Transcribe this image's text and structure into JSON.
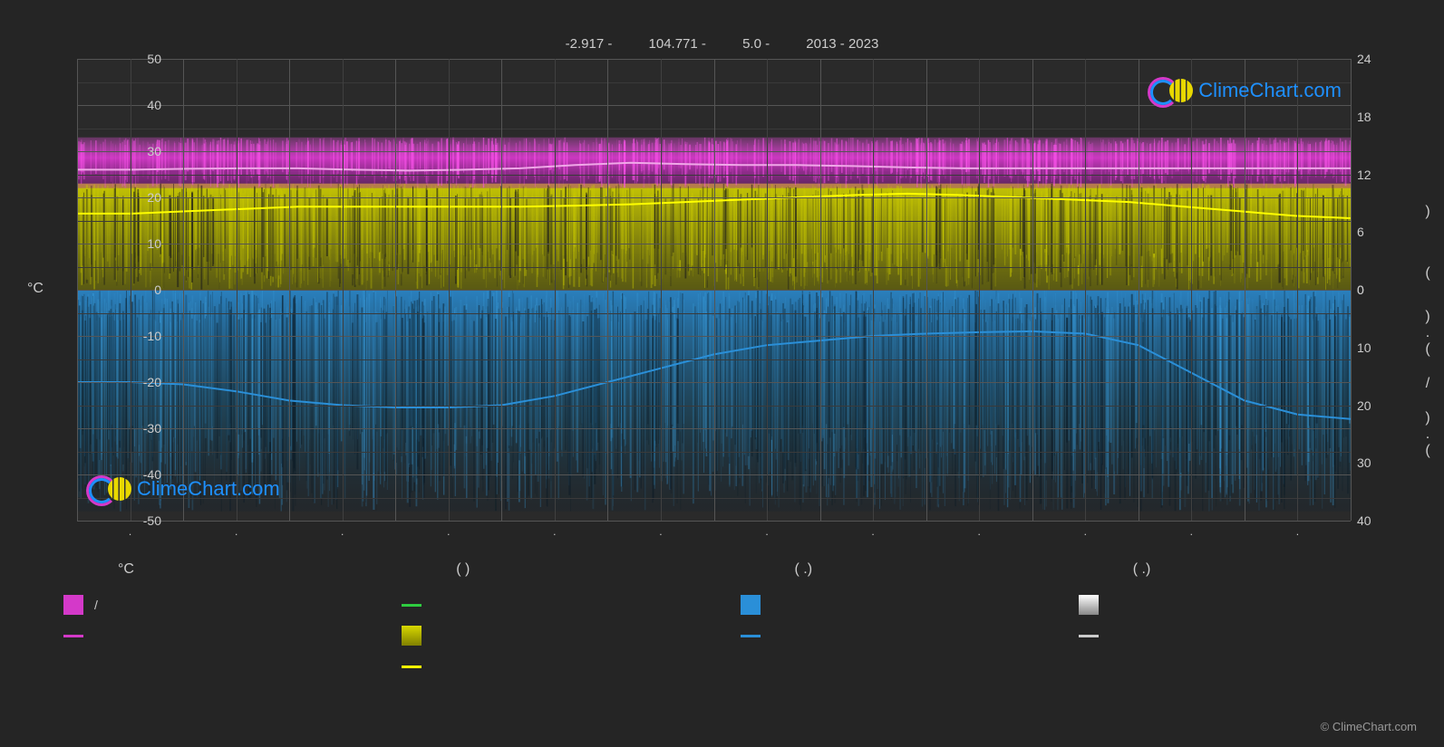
{
  "header": {
    "lat": "-2.917 -",
    "lon": "104.771 -",
    "elev": "5.0 -",
    "years": "2013 - 2023"
  },
  "chart": {
    "type": "climate-chart",
    "background_color": "#2a2a2a",
    "grid_color_major": "#555555",
    "grid_color_minor": "#3a3a3a",
    "left_axis": {
      "title": "°C",
      "min": -50,
      "max": 50,
      "ticks": [
        -50,
        -40,
        -30,
        -20,
        -10,
        0,
        10,
        20,
        30,
        40,
        50
      ]
    },
    "right_axis": {
      "upper": {
        "ticks": [
          0,
          6,
          12,
          18,
          24
        ],
        "range": [
          0,
          24
        ]
      },
      "lower": {
        "ticks": [
          0,
          10,
          20,
          30,
          40
        ],
        "range": [
          0,
          40
        ]
      },
      "labels": [
        ")",
        "(",
        ")",
        ".",
        "(",
        "/",
        ")",
        ".",
        "("
      ]
    },
    "months": [
      "",
      "",
      "",
      "",
      "",
      "",
      "",
      "",
      "",
      "",
      "",
      ""
    ],
    "series": {
      "temp_max_band": {
        "color": "#d439c9",
        "top_c": 33,
        "bottom_c": 22
      },
      "temp_max_line": {
        "color": "#f0a8e8",
        "values_c": [
          26,
          26,
          26.2,
          26.3,
          26.3,
          26,
          25.8,
          26,
          26.3,
          27,
          27.5,
          27.2,
          27,
          27,
          26.8,
          26.5,
          26.3,
          26.3,
          26.3,
          26.3,
          26.3,
          26.3,
          26.3,
          26.3
        ]
      },
      "sun_band": {
        "color": "#d8d800",
        "top_c": 23,
        "bottom_c": 0
      },
      "sun_line": {
        "color": "#ffff00",
        "values_c": [
          16.5,
          16.5,
          17,
          17.5,
          18,
          18,
          18,
          18,
          18,
          18.2,
          18.5,
          19,
          19.5,
          20,
          20.5,
          20.8,
          20.5,
          20,
          19.5,
          19,
          18,
          17,
          16,
          15.5
        ]
      },
      "precip_band": {
        "color_top": "#2a8fd8",
        "color_bottom": "#0a2a40",
        "top_c": 0,
        "bottom_c": -48
      },
      "precip_line": {
        "color": "#2a8fd8",
        "values_c": [
          -20,
          -20,
          -20.5,
          -22,
          -24,
          -25,
          -25.5,
          -25.5,
          -25,
          -23,
          -20,
          -17,
          -14,
          -12,
          -11,
          -10,
          -9.5,
          -9.2,
          -9,
          -9.5,
          -12,
          -18,
          -24,
          -27,
          -28
        ]
      },
      "green_tick": {
        "color": "#2ecc40"
      },
      "grey_band": {
        "color_top": "#ffffff",
        "color_bottom": "#888888"
      }
    }
  },
  "legend": {
    "headers": [
      "°C",
      "(           )",
      "(   .)",
      "(   .)"
    ],
    "col1": [
      {
        "type": "box",
        "color": "#d439c9",
        "label": "/"
      },
      {
        "type": "line",
        "color": "#d439c9",
        "label": ""
      }
    ],
    "col2": [
      {
        "type": "line",
        "color": "#2ecc40",
        "label": ""
      },
      {
        "type": "box",
        "color": "#d8d800",
        "label": "",
        "gradient": true
      },
      {
        "type": "line",
        "color": "#ffff00",
        "label": ""
      }
    ],
    "col3": [
      {
        "type": "box",
        "color": "#2a8fd8",
        "label": ""
      },
      {
        "type": "line",
        "color": "#2a8fd8",
        "label": ""
      }
    ],
    "col4": [
      {
        "type": "box",
        "color": "#ffffff",
        "label": "",
        "gradient_grey": true
      },
      {
        "type": "line",
        "color": "#cccccc",
        "label": ""
      }
    ]
  },
  "branding": {
    "name": "ClimeChart.com",
    "copyright": "© ClimeChart.com"
  }
}
